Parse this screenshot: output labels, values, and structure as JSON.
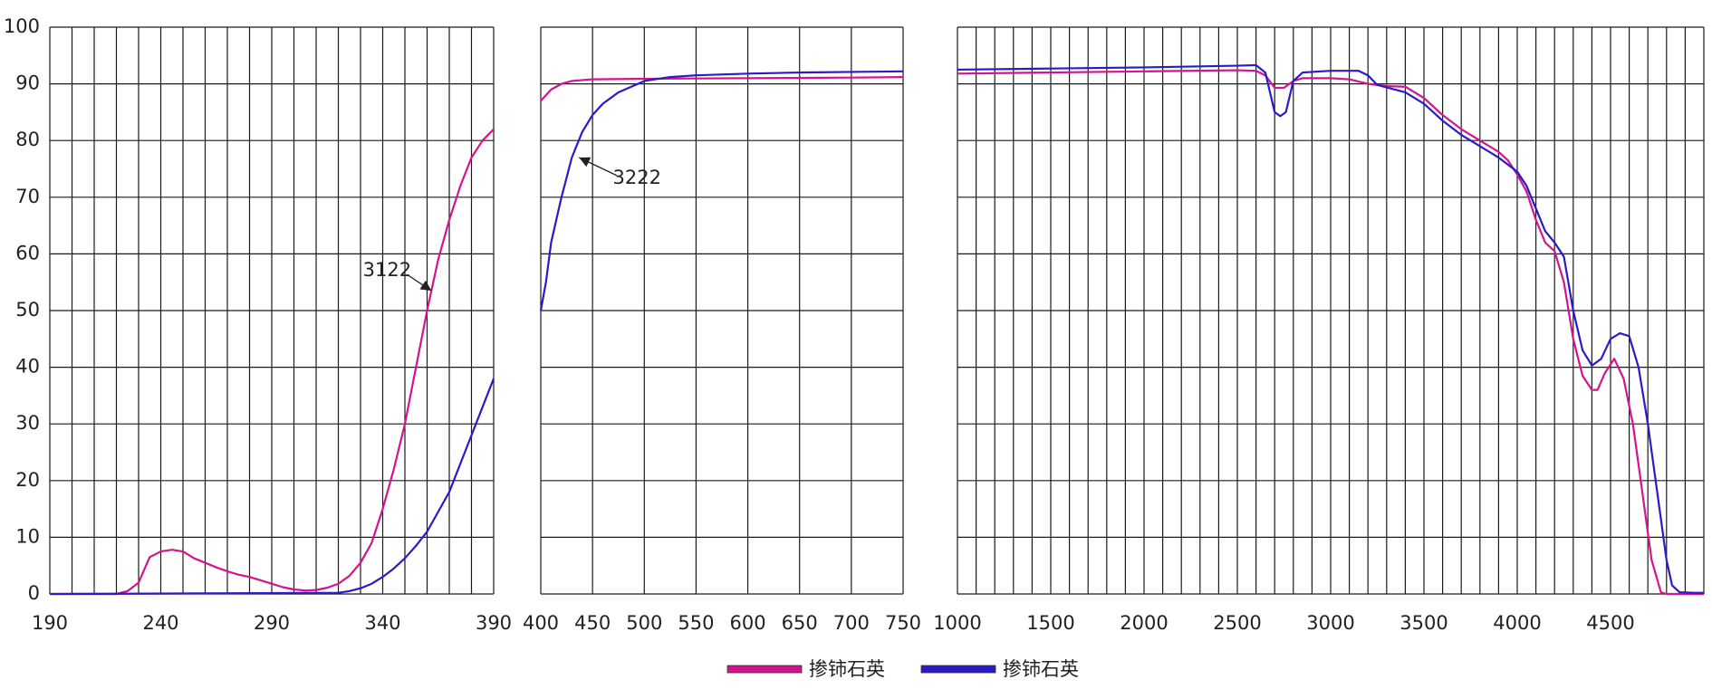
{
  "chart_data": [
    {
      "type": "line",
      "xlim": [
        190,
        390
      ],
      "ylim": [
        0,
        100
      ],
      "xticks": [
        190,
        240,
        290,
        340,
        390
      ],
      "xgrid": [
        190,
        200,
        210,
        220,
        230,
        240,
        250,
        260,
        270,
        280,
        290,
        300,
        310,
        320,
        330,
        340,
        350,
        360,
        370,
        380,
        390
      ],
      "yticks": [
        0,
        10,
        20,
        30,
        40,
        50,
        60,
        70,
        80,
        90,
        100
      ],
      "series": [
        {
          "name": "掺铈石英",
          "color": "#d4148c",
          "x": [
            190,
            220,
            225,
            230,
            235,
            240,
            245,
            250,
            255,
            260,
            265,
            270,
            275,
            280,
            285,
            290,
            295,
            300,
            305,
            310,
            315,
            320,
            325,
            330,
            335,
            340,
            345,
            350,
            355,
            360,
            365,
            370,
            375,
            380,
            385,
            390
          ],
          "values": [
            0,
            0,
            0.5,
            2,
            6.5,
            7.5,
            7.8,
            7.5,
            6.3,
            5.5,
            4.7,
            4,
            3.4,
            3,
            2.4,
            1.8,
            1.2,
            0.8,
            0.6,
            0.7,
            1.1,
            1.8,
            3.2,
            5.5,
            9,
            15,
            22,
            30,
            40,
            50,
            59,
            66,
            72,
            77,
            80,
            82
          ]
        },
        {
          "name": "掺铈石英",
          "color": "#2a1ac8",
          "x": [
            190,
            320,
            325,
            330,
            335,
            340,
            345,
            350,
            355,
            360,
            365,
            370,
            375,
            380,
            385,
            390
          ],
          "values": [
            0,
            0.2,
            0.5,
            1,
            1.8,
            3,
            4.5,
            6.3,
            8.5,
            11,
            14.5,
            18,
            23,
            28,
            33,
            38
          ]
        }
      ],
      "annotations": [
        {
          "text": "3122",
          "xytext": [
            342,
            57
          ],
          "xy": [
            362,
            53.5
          ]
        }
      ]
    },
    {
      "type": "line",
      "xlim": [
        400,
        750
      ],
      "ylim": [
        0,
        100
      ],
      "xticks": [
        400,
        450,
        500,
        550,
        600,
        650,
        700,
        750
      ],
      "ygrid": [
        0,
        10,
        20,
        30,
        40,
        50,
        60,
        70,
        80,
        90,
        100
      ],
      "series": [
        {
          "color": "#d4148c",
          "x": [
            400,
            410,
            420,
            430,
            450,
            500,
            600,
            700,
            750
          ],
          "values": [
            87,
            89,
            90,
            90.5,
            90.8,
            90.9,
            91,
            91.1,
            91.2
          ]
        },
        {
          "color": "#2a1ac8",
          "x": [
            400,
            405,
            410,
            420,
            430,
            440,
            450,
            460,
            475,
            500,
            525,
            550,
            600,
            650,
            700,
            750
          ],
          "values": [
            50,
            55,
            62,
            70,
            77,
            81.5,
            84.5,
            86.5,
            88.5,
            90.5,
            91.2,
            91.5,
            91.8,
            92,
            92.1,
            92.2
          ]
        }
      ],
      "annotations": [
        {
          "text": "3222",
          "xytext": [
            493,
            73.3
          ],
          "xy": [
            437,
            77
          ]
        }
      ]
    },
    {
      "type": "line",
      "xlim": [
        1000,
        5000
      ],
      "ylim": [
        0,
        100
      ],
      "xticks": [
        1000,
        1500,
        2000,
        2500,
        3000,
        3500,
        4000,
        4500
      ],
      "xgrid": [
        1000,
        1100,
        1200,
        1300,
        1400,
        1500,
        1600,
        1700,
        1800,
        1900,
        2000,
        2100,
        2200,
        2300,
        2400,
        2500,
        2600,
        2700,
        2800,
        2900,
        3000,
        3100,
        3200,
        3300,
        3400,
        3500,
        3600,
        3700,
        3800,
        3900,
        4000,
        4100,
        4200,
        4300,
        4400,
        4500,
        4600,
        4700,
        4800,
        4900,
        5000
      ],
      "ygrid": [
        0,
        10,
        20,
        30,
        40,
        50,
        60,
        70,
        80,
        90,
        100
      ],
      "series": [
        {
          "color": "#d4148c",
          "x": [
            1000,
            1500,
            2000,
            2500,
            2600,
            2650,
            2700,
            2750,
            2800,
            2850,
            3000,
            3100,
            3200,
            3300,
            3400,
            3500,
            3600,
            3700,
            3800,
            3900,
            3950,
            4000,
            4050,
            4100,
            4150,
            4200,
            4250,
            4300,
            4350,
            4400,
            4430,
            4470,
            4520,
            4570,
            4620,
            4670,
            4720,
            4770,
            4800,
            5000
          ],
          "values": [
            91.8,
            92,
            92.2,
            92.4,
            92.3,
            91.5,
            89.3,
            89.3,
            90.5,
            91,
            91,
            90.8,
            90,
            89.6,
            89.5,
            87.5,
            84.5,
            82,
            80,
            78,
            76.5,
            74,
            71,
            66,
            62,
            60.5,
            55,
            45,
            38.5,
            36,
            36,
            39,
            41.5,
            38,
            30,
            18,
            6,
            0.3,
            0,
            0
          ]
        },
        {
          "color": "#2a1ac8",
          "x": [
            1000,
            1500,
            2000,
            2500,
            2600,
            2650,
            2700,
            2730,
            2760,
            2800,
            2850,
            3000,
            3150,
            3200,
            3250,
            3400,
            3500,
            3600,
            3700,
            3800,
            3900,
            4000,
            4050,
            4100,
            4150,
            4200,
            4250,
            4300,
            4350,
            4400,
            4450,
            4500,
            4550,
            4600,
            4650,
            4700,
            4750,
            4800,
            4830,
            4870,
            4950,
            5000
          ],
          "values": [
            92.5,
            92.7,
            92.9,
            93.2,
            93.3,
            92,
            85,
            84.3,
            85,
            90.5,
            92,
            92.3,
            92.3,
            91.5,
            89.8,
            88.5,
            86.5,
            83.5,
            81,
            79,
            77,
            74.5,
            72,
            68,
            64,
            62,
            59.5,
            50,
            43,
            40.3,
            41.5,
            45,
            46,
            45.5,
            40,
            30,
            18,
            6,
            1.5,
            0.3,
            0.2,
            0.2
          ]
        }
      ]
    }
  ]
}
